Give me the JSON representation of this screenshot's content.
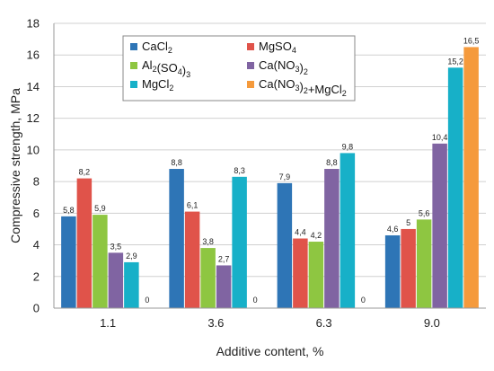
{
  "chart_data": {
    "type": "bar",
    "xlabel": "Additive content, %",
    "ylabel": "Compressive strength, MPa",
    "ylim": [
      0,
      18
    ],
    "yticks": [
      0,
      2,
      4,
      6,
      8,
      10,
      12,
      14,
      16,
      18
    ],
    "grid": "horizontal",
    "legend_position": "top-left",
    "categories": [
      "1.1",
      "3.6",
      "6.3",
      "9.0"
    ],
    "series": [
      {
        "name": "CaCl2",
        "color": "#2e75b6",
        "values": [
          5.8,
          8.8,
          7.9,
          4.6
        ],
        "labels": [
          "5,8",
          "8,8",
          "7,9",
          "4,6"
        ]
      },
      {
        "name": "MgSO4",
        "color": "#e0534a",
        "values": [
          8.2,
          6.1,
          4.4,
          5.0
        ],
        "labels": [
          "8,2",
          "6,1",
          "4,4",
          "5"
        ]
      },
      {
        "name": "Al2(SO4)3",
        "color": "#8ec641",
        "values": [
          5.9,
          3.8,
          4.2,
          5.6
        ],
        "labels": [
          "5,9",
          "3,8",
          "4,2",
          "5,6"
        ]
      },
      {
        "name": "Ca(NO3)2",
        "color": "#8064a2",
        "values": [
          3.5,
          2.7,
          8.8,
          10.4
        ],
        "labels": [
          "3,5",
          "2,7",
          "8,8",
          "10,4"
        ]
      },
      {
        "name": "MgCl2",
        "color": "#17b0c8",
        "values": [
          2.9,
          8.3,
          9.8,
          15.2
        ],
        "labels": [
          "2,9",
          "8,3",
          "9,8",
          "15,2"
        ]
      },
      {
        "name": "Ca(NO3)2+MgCl2",
        "color": "#f59a3c",
        "values": [
          0,
          0,
          0,
          16.5
        ],
        "labels": [
          "0",
          "0",
          "0",
          "16,5"
        ]
      }
    ],
    "legend": [
      {
        "series": 0,
        "parts": [
          [
            "CaCl",
            false
          ],
          [
            "2",
            true
          ]
        ]
      },
      {
        "series": 1,
        "parts": [
          [
            "MgSO",
            false
          ],
          [
            "4",
            true
          ]
        ]
      },
      {
        "series": 2,
        "parts": [
          [
            "Al",
            false
          ],
          [
            "2",
            true
          ],
          [
            "(SO",
            false
          ],
          [
            "4",
            true
          ],
          [
            ")",
            false
          ],
          [
            "3",
            true
          ]
        ]
      },
      {
        "series": 3,
        "parts": [
          [
            "Ca(NO",
            false
          ],
          [
            "3",
            true
          ],
          [
            ")",
            false
          ],
          [
            "2",
            true
          ]
        ]
      },
      {
        "series": 4,
        "parts": [
          [
            "MgCl",
            false
          ],
          [
            "2",
            true
          ]
        ]
      },
      {
        "series": 5,
        "parts": [
          [
            "Ca(NO",
            false
          ],
          [
            "3",
            true
          ],
          [
            ")",
            false
          ],
          [
            "2",
            true
          ],
          [
            "+MgCl",
            false
          ],
          [
            "2",
            true
          ]
        ]
      }
    ]
  }
}
